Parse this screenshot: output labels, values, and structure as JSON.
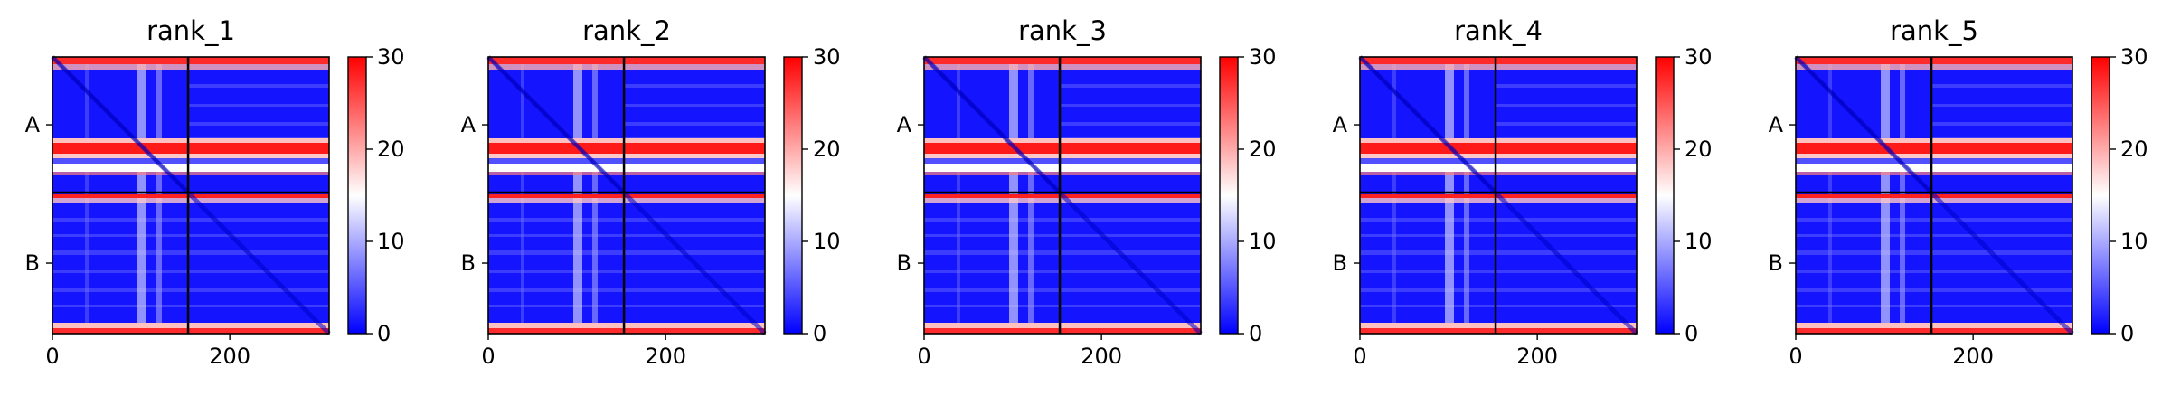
{
  "chart_data": [
    {
      "type": "heatmap",
      "title": "rank_1",
      "xticks": [
        0,
        200
      ],
      "yticks": [
        "A",
        "B"
      ],
      "xlim": [
        0,
        312
      ],
      "chain_boundary": 153,
      "colorbar": {
        "ticks": [
          0,
          10,
          20,
          30
        ],
        "range": [
          0,
          30
        ],
        "colors": [
          "#0000ff",
          "#ffffff",
          "#ff0000"
        ]
      },
      "grid": false
    },
    {
      "type": "heatmap",
      "title": "rank_2",
      "xticks": [
        0,
        200
      ],
      "yticks": [
        "A",
        "B"
      ],
      "xlim": [
        0,
        312
      ],
      "chain_boundary": 153,
      "colorbar": {
        "ticks": [
          0,
          10,
          20,
          30
        ],
        "range": [
          0,
          30
        ],
        "colors": [
          "#0000ff",
          "#ffffff",
          "#ff0000"
        ]
      },
      "grid": false
    },
    {
      "type": "heatmap",
      "title": "rank_3",
      "xticks": [
        0,
        200
      ],
      "yticks": [
        "A",
        "B"
      ],
      "xlim": [
        0,
        312
      ],
      "chain_boundary": 153,
      "colorbar": {
        "ticks": [
          0,
          10,
          20,
          30
        ],
        "range": [
          0,
          30
        ],
        "colors": [
          "#0000ff",
          "#ffffff",
          "#ff0000"
        ]
      },
      "grid": false
    },
    {
      "type": "heatmap",
      "title": "rank_4",
      "xticks": [
        0,
        200
      ],
      "yticks": [
        "A",
        "B"
      ],
      "xlim": [
        0,
        312
      ],
      "chain_boundary": 153,
      "colorbar": {
        "ticks": [
          0,
          10,
          20,
          30
        ],
        "range": [
          0,
          30
        ],
        "colors": [
          "#0000ff",
          "#ffffff",
          "#ff0000"
        ]
      },
      "grid": false
    },
    {
      "type": "heatmap",
      "title": "rank_5",
      "xticks": [
        0,
        200
      ],
      "yticks": [
        "A",
        "B"
      ],
      "xlim": [
        0,
        312
      ],
      "chain_boundary": 153,
      "colorbar": {
        "ticks": [
          0,
          10,
          20,
          30
        ],
        "range": [
          0,
          30
        ],
        "colors": [
          "#0000ff",
          "#ffffff",
          "#ff0000"
        ]
      },
      "grid": false
    }
  ]
}
